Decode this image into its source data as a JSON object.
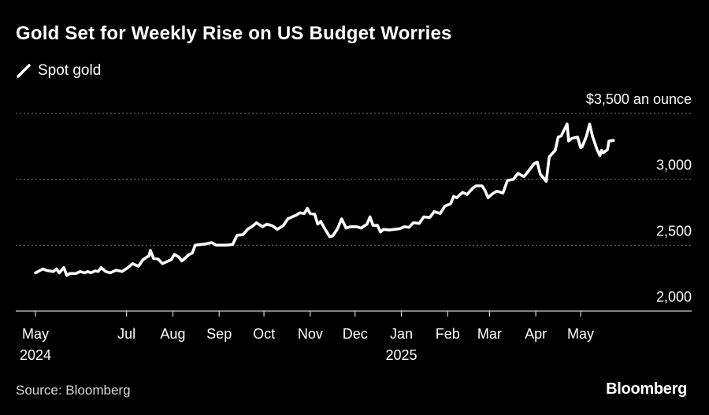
{
  "title": "Gold Set for Weekly Rise on US Budget Worries",
  "source": "Source: Bloomberg",
  "brand": "Bloomberg",
  "chart_data": {
    "type": "line",
    "title": "Gold Set for Weekly Rise on US Budget Worries",
    "unit_label": "$3,500 an ounce",
    "series": [
      {
        "name": "Spot gold",
        "color": "#ffffff",
        "points": [
          [
            "2024-05-01",
            2290
          ],
          [
            "2024-05-03",
            2301
          ],
          [
            "2024-05-06",
            2320
          ],
          [
            "2024-05-08",
            2310
          ],
          [
            "2024-05-10",
            2305
          ],
          [
            "2024-05-13",
            2300
          ],
          [
            "2024-05-15",
            2320
          ],
          [
            "2024-05-17",
            2290
          ],
          [
            "2024-05-20",
            2330
          ],
          [
            "2024-05-22",
            2270
          ],
          [
            "2024-05-24",
            2285
          ],
          [
            "2024-05-28",
            2285
          ],
          [
            "2024-05-31",
            2300
          ],
          [
            "2024-06-03",
            2290
          ],
          [
            "2024-06-05",
            2300
          ],
          [
            "2024-06-07",
            2290
          ],
          [
            "2024-06-10",
            2305
          ],
          [
            "2024-06-12",
            2300
          ],
          [
            "2024-06-14",
            2330
          ],
          [
            "2024-06-17",
            2300
          ],
          [
            "2024-06-20",
            2290
          ],
          [
            "2024-06-24",
            2310
          ],
          [
            "2024-06-28",
            2300
          ],
          [
            "2024-07-02",
            2330
          ],
          [
            "2024-07-05",
            2360
          ],
          [
            "2024-07-09",
            2340
          ],
          [
            "2024-07-12",
            2390
          ],
          [
            "2024-07-16",
            2420
          ],
          [
            "2024-07-17",
            2460
          ],
          [
            "2024-07-19",
            2400
          ],
          [
            "2024-07-22",
            2395
          ],
          [
            "2024-07-25",
            2360
          ],
          [
            "2024-07-29",
            2380
          ],
          [
            "2024-07-31",
            2390
          ],
          [
            "2024-08-02",
            2430
          ],
          [
            "2024-08-05",
            2410
          ],
          [
            "2024-08-07",
            2380
          ],
          [
            "2024-08-12",
            2430
          ],
          [
            "2024-08-14",
            2440
          ],
          [
            "2024-08-16",
            2500
          ],
          [
            "2024-08-20",
            2505
          ],
          [
            "2024-08-23",
            2510
          ],
          [
            "2024-08-27",
            2520
          ],
          [
            "2024-08-30",
            2500
          ],
          [
            "2024-09-03",
            2500
          ],
          [
            "2024-09-06",
            2500
          ],
          [
            "2024-09-10",
            2505
          ],
          [
            "2024-09-13",
            2575
          ],
          [
            "2024-09-17",
            2580
          ],
          [
            "2024-09-20",
            2620
          ],
          [
            "2024-09-24",
            2650
          ],
          [
            "2024-09-26",
            2670
          ],
          [
            "2024-09-30",
            2640
          ],
          [
            "2024-10-03",
            2660
          ],
          [
            "2024-10-07",
            2645
          ],
          [
            "2024-10-10",
            2620
          ],
          [
            "2024-10-14",
            2650
          ],
          [
            "2024-10-17",
            2700
          ],
          [
            "2024-10-21",
            2720
          ],
          [
            "2024-10-23",
            2730
          ],
          [
            "2024-10-25",
            2745
          ],
          [
            "2024-10-28",
            2740
          ],
          [
            "2024-10-30",
            2780
          ],
          [
            "2024-11-01",
            2740
          ],
          [
            "2024-11-04",
            2735
          ],
          [
            "2024-11-06",
            2660
          ],
          [
            "2024-11-08",
            2680
          ],
          [
            "2024-11-11",
            2620
          ],
          [
            "2024-11-14",
            2565
          ],
          [
            "2024-11-16",
            2570
          ],
          [
            "2024-11-19",
            2620
          ],
          [
            "2024-11-22",
            2700
          ],
          [
            "2024-11-25",
            2630
          ],
          [
            "2024-11-28",
            2640
          ],
          [
            "2024-12-02",
            2640
          ],
          [
            "2024-12-05",
            2630
          ],
          [
            "2024-12-09",
            2660
          ],
          [
            "2024-12-11",
            2715
          ],
          [
            "2024-12-13",
            2650
          ],
          [
            "2024-12-16",
            2650
          ],
          [
            "2024-12-18",
            2600
          ],
          [
            "2024-12-20",
            2620
          ],
          [
            "2024-12-24",
            2615
          ],
          [
            "2024-12-27",
            2620
          ],
          [
            "2024-12-31",
            2625
          ],
          [
            "2025-01-03",
            2640
          ],
          [
            "2025-01-06",
            2635
          ],
          [
            "2025-01-09",
            2670
          ],
          [
            "2025-01-13",
            2665
          ],
          [
            "2025-01-16",
            2715
          ],
          [
            "2025-01-20",
            2710
          ],
          [
            "2025-01-23",
            2755
          ],
          [
            "2025-01-27",
            2740
          ],
          [
            "2025-01-30",
            2795
          ],
          [
            "2025-02-03",
            2815
          ],
          [
            "2025-02-05",
            2870
          ],
          [
            "2025-02-07",
            2860
          ],
          [
            "2025-02-11",
            2900
          ],
          [
            "2025-02-14",
            2885
          ],
          [
            "2025-02-18",
            2935
          ],
          [
            "2025-02-20",
            2950
          ],
          [
            "2025-02-24",
            2950
          ],
          [
            "2025-02-26",
            2915
          ],
          [
            "2025-02-28",
            2860
          ],
          [
            "2025-03-03",
            2890
          ],
          [
            "2025-03-06",
            2910
          ],
          [
            "2025-03-10",
            2895
          ],
          [
            "2025-03-13",
            2990
          ],
          [
            "2025-03-17",
            3000
          ],
          [
            "2025-03-20",
            3045
          ],
          [
            "2025-03-24",
            3020
          ],
          [
            "2025-03-27",
            3060
          ],
          [
            "2025-03-31",
            3120
          ],
          [
            "2025-04-02",
            3130
          ],
          [
            "2025-04-04",
            3040
          ],
          [
            "2025-04-08",
            2985
          ],
          [
            "2025-04-10",
            3170
          ],
          [
            "2025-04-14",
            3220
          ],
          [
            "2025-04-16",
            3320
          ],
          [
            "2025-04-18",
            3330
          ],
          [
            "2025-04-22",
            3420
          ],
          [
            "2025-04-23",
            3290
          ],
          [
            "2025-04-25",
            3310
          ],
          [
            "2025-04-29",
            3320
          ],
          [
            "2025-05-01",
            3240
          ],
          [
            "2025-05-02",
            3245
          ],
          [
            "2025-05-05",
            3330
          ],
          [
            "2025-05-07",
            3420
          ],
          [
            "2025-05-09",
            3325
          ],
          [
            "2025-05-12",
            3225
          ],
          [
            "2025-05-14",
            3180
          ],
          [
            "2025-05-15",
            3220
          ],
          [
            "2025-05-16",
            3200
          ],
          [
            "2025-05-19",
            3225
          ],
          [
            "2025-05-20",
            3290
          ],
          [
            "2025-05-23",
            3295
          ]
        ]
      }
    ],
    "ylim": [
      2000,
      3500
    ],
    "y_ticks": [
      {
        "value": 3500,
        "label": "$3,500 an ounce"
      },
      {
        "value": 3000,
        "label": "3,000"
      },
      {
        "value": 2500,
        "label": "2,500"
      },
      {
        "value": 2000,
        "label": "2,000"
      }
    ],
    "xlim": [
      "2024-05-01",
      "2025-06-12"
    ],
    "x_ticks": [
      {
        "date": "2024-05-01",
        "label": "May",
        "sublabel": "2024"
      },
      {
        "date": "2024-07-01",
        "label": "Jul",
        "sublabel": ""
      },
      {
        "date": "2024-08-01",
        "label": "Aug",
        "sublabel": ""
      },
      {
        "date": "2024-09-01",
        "label": "Sep",
        "sublabel": ""
      },
      {
        "date": "2024-10-01",
        "label": "Oct",
        "sublabel": ""
      },
      {
        "date": "2024-11-01",
        "label": "Nov",
        "sublabel": ""
      },
      {
        "date": "2024-12-01",
        "label": "Dec",
        "sublabel": ""
      },
      {
        "date": "2025-01-01",
        "label": "Jan",
        "sublabel": "2025"
      },
      {
        "date": "2025-02-01",
        "label": "Feb",
        "sublabel": ""
      },
      {
        "date": "2025-03-01",
        "label": "Mar",
        "sublabel": ""
      },
      {
        "date": "2025-04-01",
        "label": "Apr",
        "sublabel": ""
      },
      {
        "date": "2025-05-01",
        "label": "May",
        "sublabel": ""
      }
    ],
    "grid": true,
    "legend_position": "top-left",
    "colors": {
      "background": "#000000",
      "line": "#ffffff",
      "grid": "#7a7a7a",
      "axis": "#cfcfcf",
      "text": "#ffffff",
      "muted_text": "#d9d9d9"
    }
  }
}
